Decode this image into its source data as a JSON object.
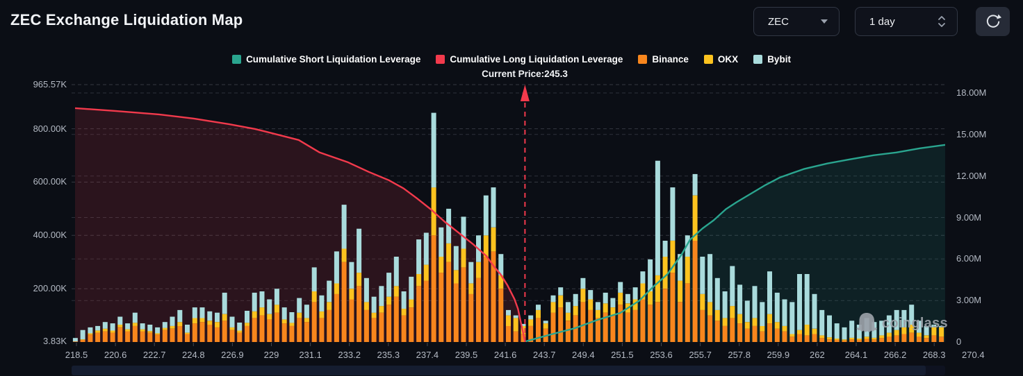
{
  "header": {
    "title": "ZEC Exchange Liquidation Map"
  },
  "controls": {
    "symbol_select": {
      "value": "ZEC"
    },
    "interval_select": {
      "value": "1 day"
    }
  },
  "legend": [
    {
      "label": "Cumulative Short Liquidation Leverage",
      "color": "#2aa58f"
    },
    {
      "label": "Cumulative Long Liquidation Leverage",
      "color": "#f23a4c"
    },
    {
      "label": "Binance",
      "color": "#f8861d"
    },
    {
      "label": "OKX",
      "color": "#fdc31f"
    },
    {
      "label": "Bybit",
      "color": "#a9dbdc"
    }
  ],
  "current_price_label": "Current Price:245.3",
  "watermark": {
    "text": "coinglass"
  },
  "chart_data": {
    "type": "combo: stacked bars (exchange liquidation leverage, left axis) + cumulative area lines (right axis)",
    "title": "ZEC Exchange Liquidation Map",
    "grid": "dashed horizontal",
    "current_price": 245.3,
    "current_price_x_fraction": 0.519,
    "left_axis": {
      "ticks": [
        "965.57K",
        "800.00K",
        "600.00K",
        "400.00K",
        "200.00K",
        "3.83K"
      ],
      "values_k": [
        965.57,
        800,
        600,
        400,
        200,
        3.83
      ],
      "max_k": 965.57
    },
    "right_axis": {
      "ticks": [
        "18.00M",
        "15.00M",
        "12.00M",
        "9.00M",
        "6.00M",
        "3.00M",
        "0"
      ],
      "values_m": [
        18,
        15,
        12,
        9,
        6,
        3,
        0
      ],
      "max_m": 18
    },
    "x_ticks": [
      "218.5",
      "220.6",
      "222.7",
      "224.8",
      "226.9",
      "229",
      "231.1",
      "233.2",
      "235.3",
      "237.4",
      "239.5",
      "241.6",
      "243.7",
      "249.4",
      "251.5",
      "253.6",
      "255.7",
      "257.8",
      "259.9",
      "262",
      "264.1",
      "266.2",
      "268.3",
      "270.4"
    ],
    "bars": {
      "series_order": [
        "Binance",
        "OKX",
        "Bybit"
      ],
      "colors": [
        "#f8861d",
        "#fdc31f",
        "#a9dbdc"
      ],
      "unit": "K",
      "values_k": [
        [
          2,
          0,
          13
        ],
        [
          8,
          2,
          35
        ],
        [
          28,
          5,
          22
        ],
        [
          35,
          8,
          17
        ],
        [
          40,
          10,
          25
        ],
        [
          35,
          8,
          27
        ],
        [
          55,
          10,
          30
        ],
        [
          40,
          8,
          22
        ],
        [
          60,
          12,
          38
        ],
        [
          40,
          8,
          22
        ],
        [
          35,
          6,
          24
        ],
        [
          28,
          5,
          22
        ],
        [
          45,
          8,
          22
        ],
        [
          50,
          10,
          35
        ],
        [
          60,
          15,
          45
        ],
        [
          30,
          5,
          30
        ],
        [
          70,
          20,
          40
        ],
        [
          75,
          15,
          40
        ],
        [
          65,
          15,
          35
        ],
        [
          55,
          20,
          35
        ],
        [
          80,
          25,
          80
        ],
        [
          45,
          10,
          40
        ],
        [
          35,
          8,
          30
        ],
        [
          60,
          12,
          45
        ],
        [
          90,
          25,
          70
        ],
        [
          100,
          30,
          60
        ],
        [
          85,
          20,
          55
        ],
        [
          110,
          30,
          60
        ],
        [
          70,
          15,
          45
        ],
        [
          60,
          12,
          40
        ],
        [
          90,
          20,
          55
        ],
        [
          75,
          15,
          50
        ],
        [
          150,
          40,
          90
        ],
        [
          90,
          25,
          60
        ],
        [
          120,
          30,
          80
        ],
        [
          180,
          40,
          120
        ],
        [
          300,
          50,
          165
        ],
        [
          160,
          40,
          100
        ],
        [
          210,
          50,
          165
        ],
        [
          120,
          30,
          90
        ],
        [
          90,
          20,
          60
        ],
        [
          110,
          25,
          75
        ],
        [
          140,
          30,
          90
        ],
        [
          170,
          40,
          110
        ],
        [
          100,
          25,
          65
        ],
        [
          130,
          30,
          85
        ],
        [
          210,
          45,
          130
        ],
        [
          230,
          60,
          120
        ],
        [
          400,
          180,
          280
        ],
        [
          260,
          60,
          110
        ],
        [
          300,
          70,
          130
        ],
        [
          220,
          50,
          90
        ],
        [
          280,
          70,
          120
        ],
        [
          180,
          40,
          80
        ],
        [
          240,
          60,
          100
        ],
        [
          320,
          80,
          150
        ],
        [
          340,
          90,
          150
        ],
        [
          200,
          50,
          80
        ],
        [
          60,
          40,
          20
        ],
        [
          40,
          50,
          10
        ],
        [
          30,
          30,
          8
        ],
        [
          60,
          25,
          15
        ],
        [
          90,
          30,
          20
        ],
        [
          50,
          20,
          10
        ],
        [
          110,
          40,
          25
        ],
        [
          130,
          45,
          30
        ],
        [
          80,
          30,
          40
        ],
        [
          100,
          35,
          45
        ],
        [
          150,
          50,
          40
        ],
        [
          120,
          40,
          35
        ],
        [
          90,
          30,
          30
        ],
        [
          110,
          35,
          40
        ],
        [
          100,
          30,
          35
        ],
        [
          140,
          45,
          40
        ],
        [
          110,
          35,
          35
        ],
        [
          120,
          40,
          45
        ],
        [
          160,
          60,
          45
        ],
        [
          140,
          50,
          120
        ],
        [
          150,
          100,
          430
        ],
        [
          200,
          120,
          60
        ],
        [
          260,
          120,
          200
        ],
        [
          150,
          80,
          100
        ],
        [
          220,
          100,
          80
        ],
        [
          380,
          170,
          80
        ],
        [
          120,
          60,
          140
        ],
        [
          100,
          50,
          180
        ],
        [
          80,
          40,
          120
        ],
        [
          60,
          30,
          100
        ],
        [
          90,
          45,
          150
        ],
        [
          70,
          35,
          110
        ],
        [
          50,
          25,
          80
        ],
        [
          60,
          30,
          120
        ],
        [
          40,
          20,
          90
        ],
        [
          70,
          35,
          160
        ],
        [
          50,
          25,
          110
        ],
        [
          40,
          20,
          100
        ],
        [
          20,
          10,
          120
        ],
        [
          30,
          15,
          210
        ],
        [
          25,
          40,
          190
        ],
        [
          30,
          20,
          130
        ],
        [
          15,
          10,
          95
        ],
        [
          10,
          8,
          82
        ],
        [
          8,
          5,
          57
        ],
        [
          6,
          4,
          45
        ],
        [
          10,
          6,
          64
        ],
        [
          8,
          5,
          52
        ],
        [
          12,
          8,
          70
        ],
        [
          10,
          6,
          59
        ],
        [
          15,
          10,
          55
        ],
        [
          20,
          15,
          65
        ],
        [
          25,
          20,
          75
        ],
        [
          30,
          25,
          65
        ],
        [
          35,
          30,
          75
        ],
        [
          20,
          15,
          45
        ],
        [
          15,
          10,
          35
        ],
        [
          25,
          30,
          10
        ],
        [
          20,
          35,
          5
        ]
      ]
    },
    "lines": {
      "long": {
        "name": "Cumulative Long Liquidation Leverage",
        "color": "#f23a4c",
        "fill": "rgba(242,58,76,0.14)",
        "unit": "M",
        "points": [
          [
            0.004,
            16.9
          ],
          [
            0.05,
            16.7
          ],
          [
            0.1,
            16.45
          ],
          [
            0.14,
            16.15
          ],
          [
            0.18,
            15.75
          ],
          [
            0.21,
            15.4
          ],
          [
            0.235,
            15.0
          ],
          [
            0.26,
            14.6
          ],
          [
            0.284,
            13.7
          ],
          [
            0.3,
            13.35
          ],
          [
            0.316,
            13.0
          ],
          [
            0.34,
            12.3
          ],
          [
            0.363,
            11.7
          ],
          [
            0.38,
            11.1
          ],
          [
            0.395,
            10.4
          ],
          [
            0.411,
            9.6
          ],
          [
            0.427,
            8.7
          ],
          [
            0.443,
            7.9
          ],
          [
            0.459,
            7.1
          ],
          [
            0.475,
            6.2
          ],
          [
            0.483,
            5.5
          ],
          [
            0.491,
            4.9
          ],
          [
            0.499,
            4.1
          ],
          [
            0.507,
            3.1
          ],
          [
            0.511,
            2.4
          ],
          [
            0.515,
            1.2
          ],
          [
            0.519,
            0.05
          ]
        ]
      },
      "short": {
        "name": "Cumulative Short Liquidation Leverage",
        "color": "#2aa58f",
        "fill": "rgba(42,165,143,0.13)",
        "unit": "M",
        "points": [
          [
            0.52,
            0.05
          ],
          [
            0.546,
            0.5
          ],
          [
            0.576,
            1.0
          ],
          [
            0.602,
            1.6
          ],
          [
            0.628,
            2.1
          ],
          [
            0.65,
            3.0
          ],
          [
            0.666,
            4.0
          ],
          [
            0.682,
            4.9
          ],
          [
            0.698,
            6.3
          ],
          [
            0.708,
            7.4
          ],
          [
            0.722,
            8.2
          ],
          [
            0.735,
            8.8
          ],
          [
            0.749,
            9.6
          ],
          [
            0.761,
            10.1
          ],
          [
            0.777,
            10.7
          ],
          [
            0.793,
            11.3
          ],
          [
            0.811,
            11.9
          ],
          [
            0.838,
            12.5
          ],
          [
            0.865,
            12.9
          ],
          [
            0.891,
            13.2
          ],
          [
            0.918,
            13.5
          ],
          [
            0.944,
            13.7
          ],
          [
            0.971,
            14.0
          ],
          [
            1.0,
            14.25
          ]
        ]
      }
    }
  }
}
